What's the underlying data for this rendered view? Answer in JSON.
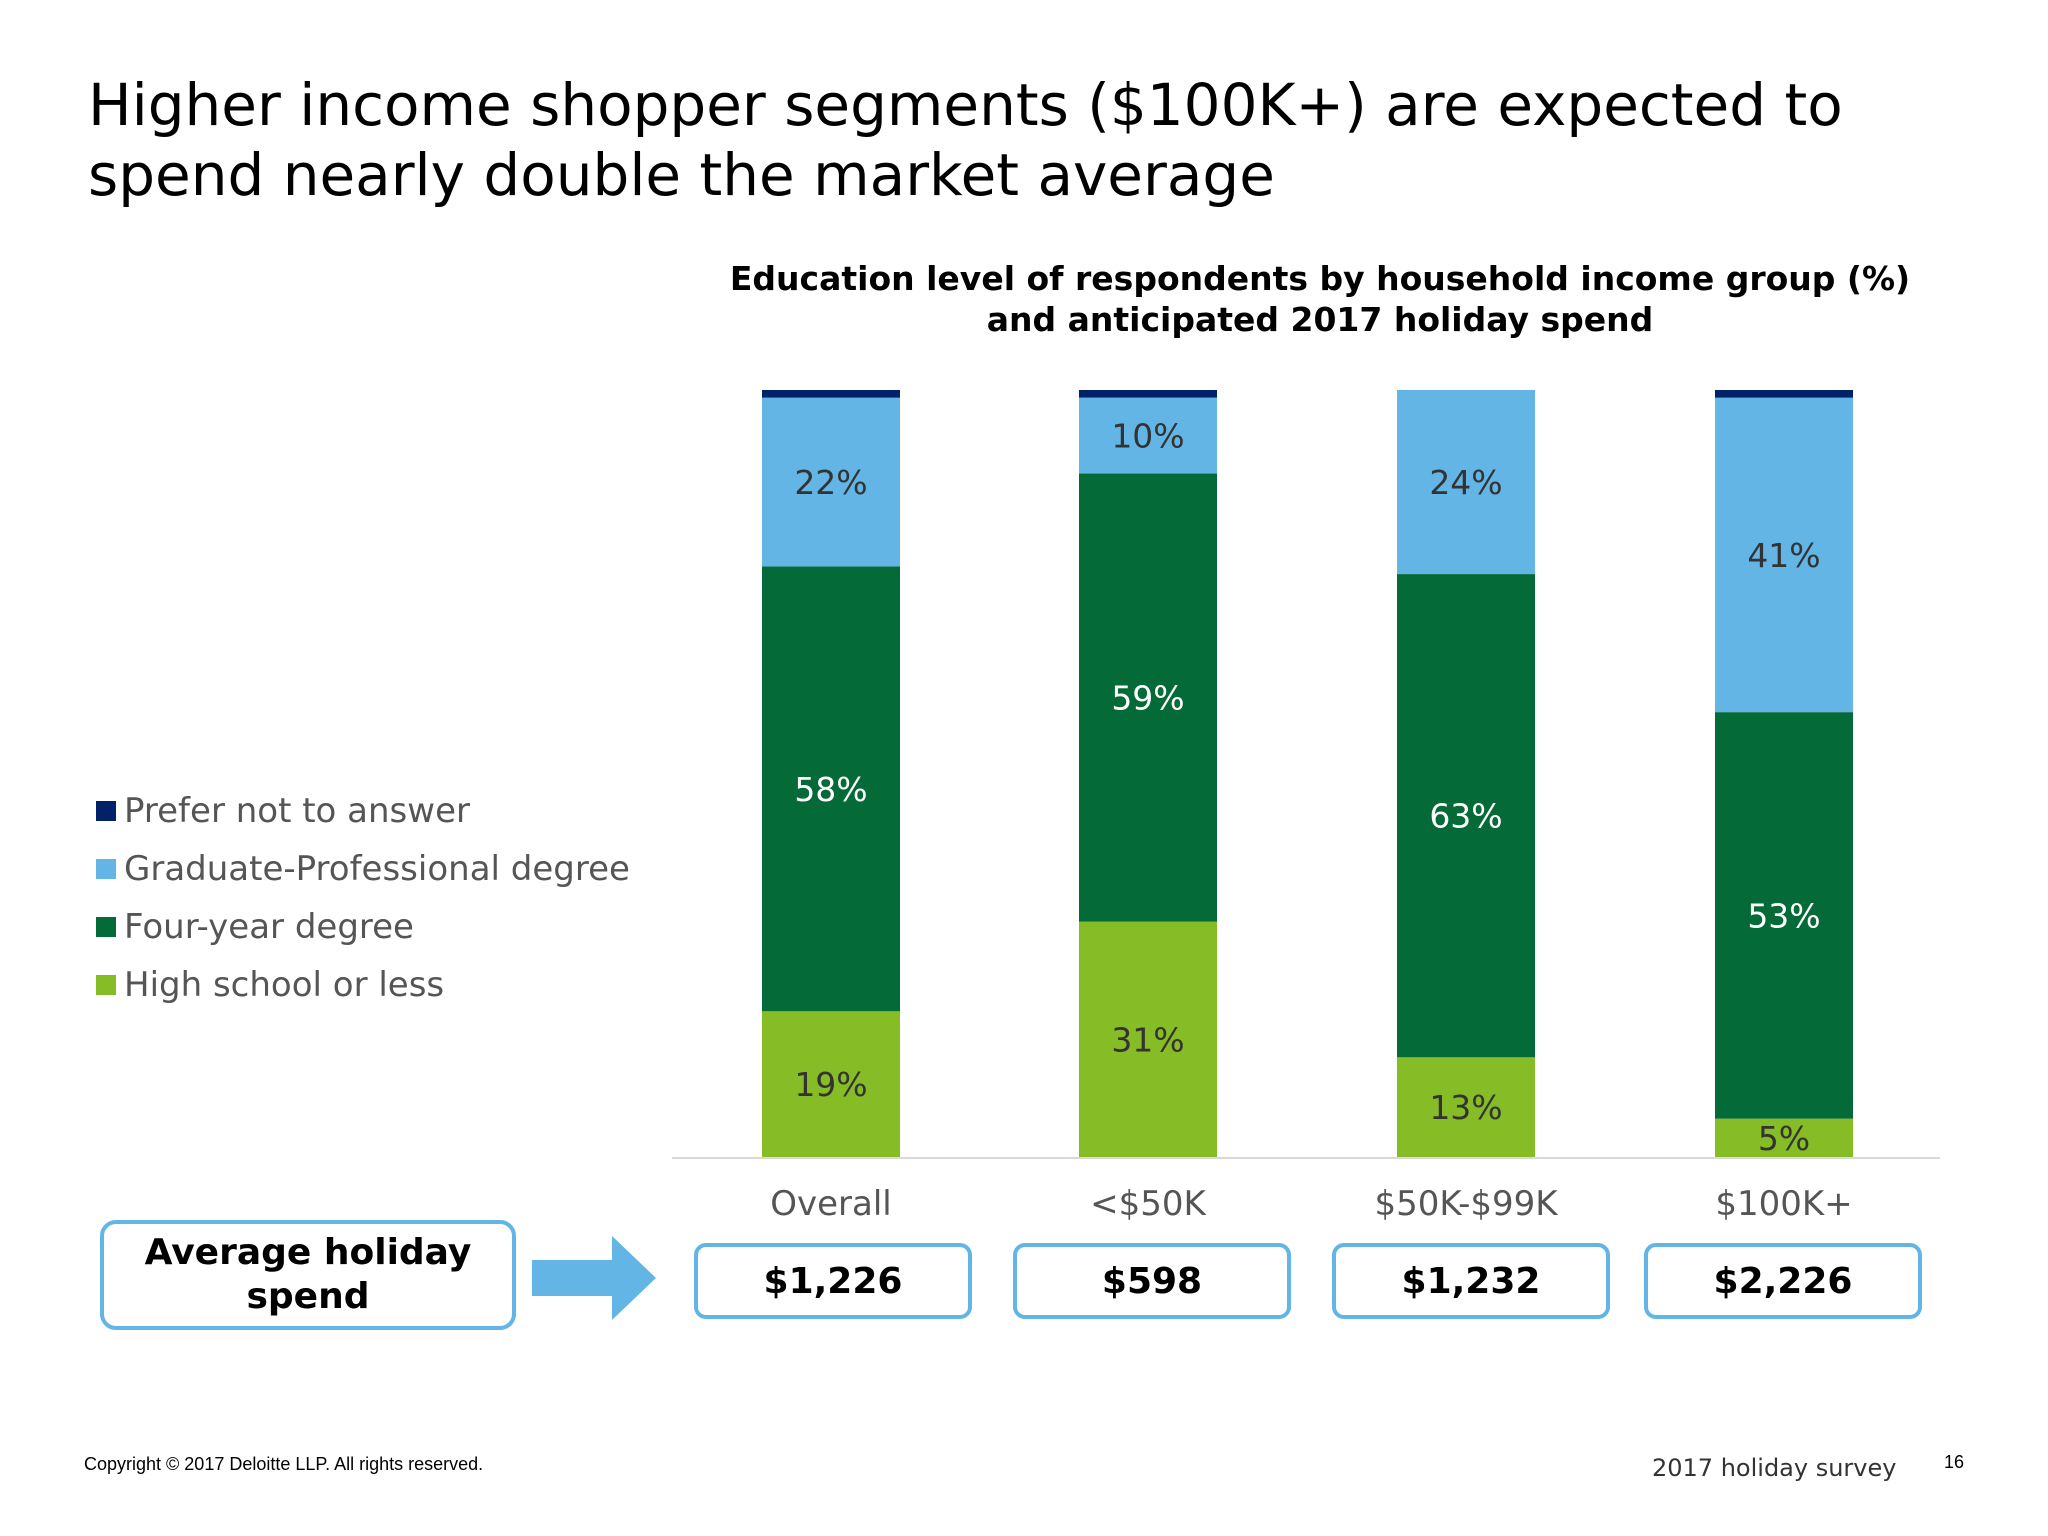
{
  "page": {
    "title": "Higher income shopper segments ($100K+) are expected to spend nearly double the market average",
    "footer_left": "Copyright © 2017 Deloitte LLP. All rights reserved.",
    "footer_right": "2017 holiday survey",
    "page_number": "16"
  },
  "avg_label": "Average holiday spend",
  "spend_values": [
    "$1,226",
    "$598",
    "$1,232",
    "$2,226"
  ],
  "chart_data": {
    "type": "bar",
    "stacked": true,
    "title_lines": [
      "Education level of respondents by household income group (%)",
      "and anticipated 2017 holiday spend"
    ],
    "categories": [
      "Overall",
      "<$50K",
      "$50K-$99K",
      "$100K+"
    ],
    "series": [
      {
        "name": "High school or less",
        "color": "#86bc25",
        "values": [
          19,
          31,
          13,
          5
        ],
        "labels": [
          "19%",
          "31%",
          "13%",
          "5%"
        ]
      },
      {
        "name": "Four-year degree",
        "color": "#046a38",
        "values": [
          58,
          59,
          63,
          53
        ],
        "labels": [
          "58%",
          "59%",
          "63%",
          "53%"
        ]
      },
      {
        "name": "Graduate-Professional degree",
        "color": "#62b5e5",
        "values": [
          22,
          10,
          24,
          41
        ],
        "labels": [
          "22%",
          "10%",
          "24%",
          "41%"
        ]
      },
      {
        "name": "Prefer not to answer",
        "color": "#012169",
        "values": [
          1,
          1,
          0,
          1
        ],
        "labels": [
          "",
          "",
          "",
          ""
        ]
      }
    ],
    "ylim": [
      0,
      100
    ],
    "legend_position": "left",
    "label_colors": {
      "on_light": "#333333",
      "on_dark": "#ffffff"
    }
  }
}
